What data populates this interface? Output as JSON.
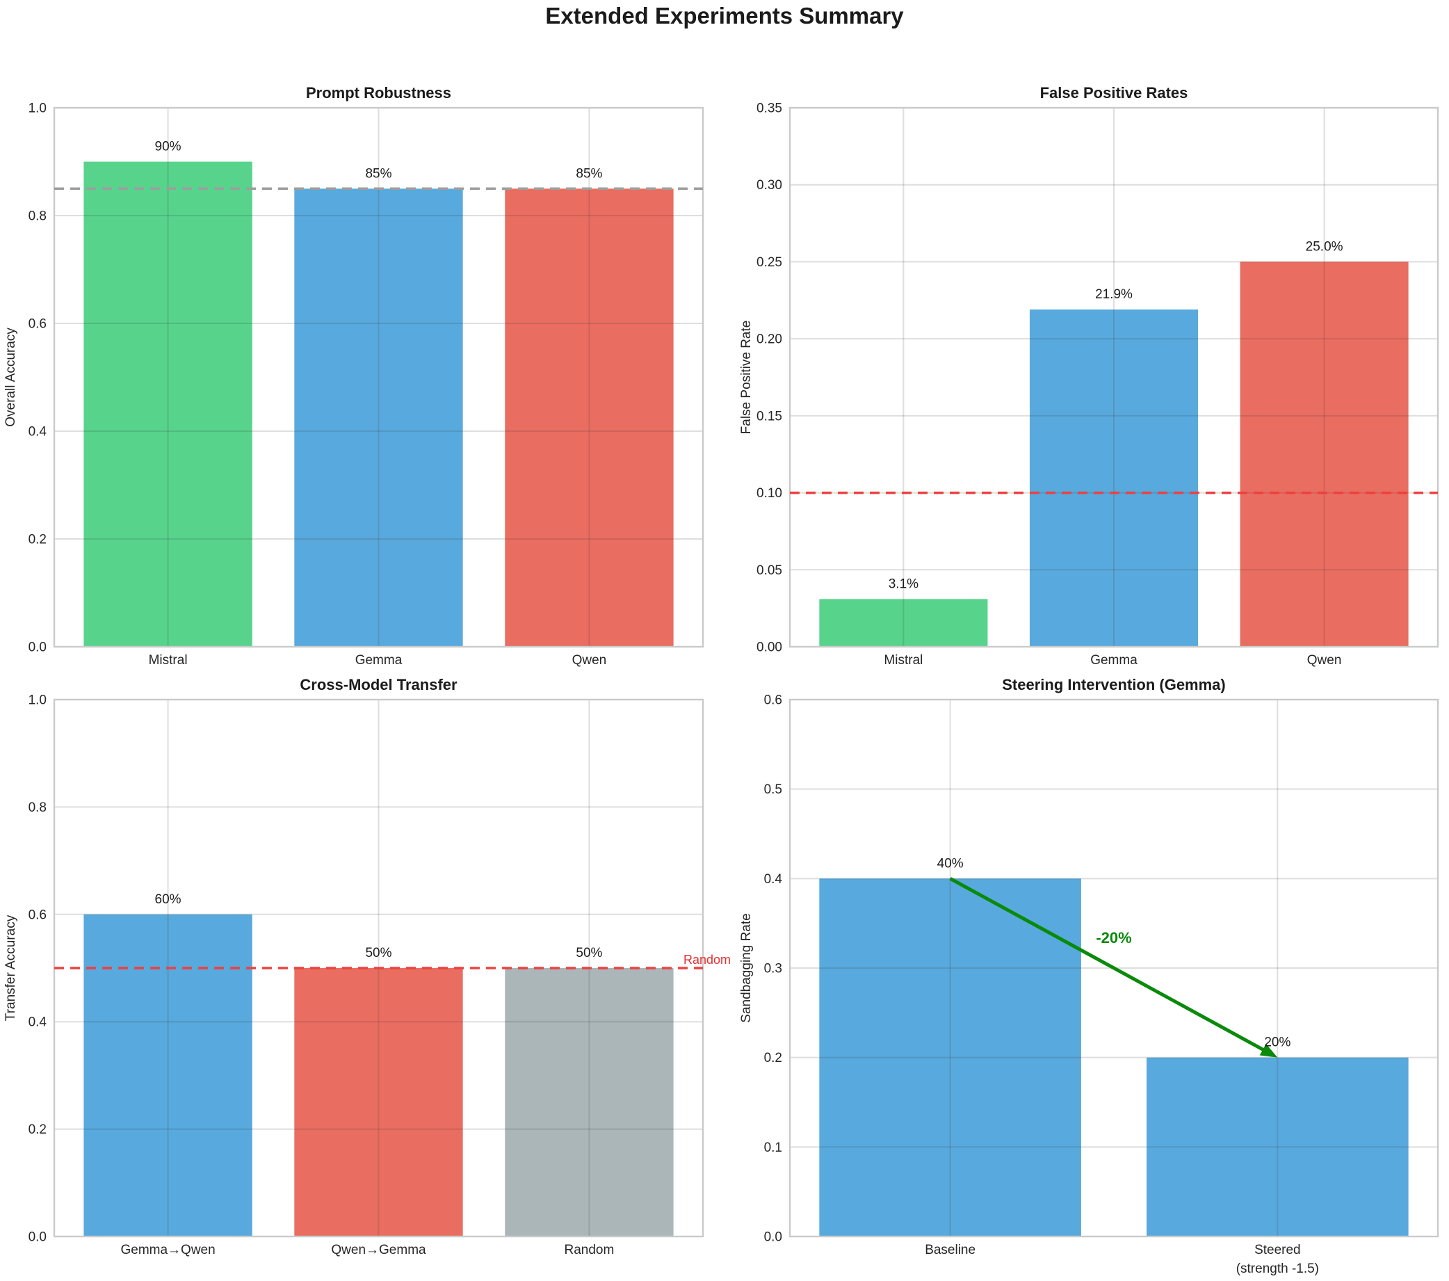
{
  "figure_title": "Extended Experiments Summary",
  "text_color": "#262626",
  "grid_color": "rgba(60,60,60,0.17)",
  "spine_color": "#c9cacb",
  "chart_data": [
    {
      "type": "bar",
      "title": "Prompt Robustness",
      "ylabel": "Overall Accuracy",
      "ylim": [
        0,
        1.0
      ],
      "yticks": [
        {
          "label": "0.0",
          "value": 0.0
        },
        {
          "label": "0.2",
          "value": 0.2
        },
        {
          "label": "0.4",
          "value": 0.4
        },
        {
          "label": "0.6",
          "value": 0.6
        },
        {
          "label": "0.8",
          "value": 0.8
        },
        {
          "label": "1.0",
          "value": 1.0
        }
      ],
      "categories": [
        "Mistral",
        "Gemma",
        "Qwen"
      ],
      "values": [
        0.9,
        0.85,
        0.85
      ],
      "bar_labels": [
        "90%",
        "85%",
        "85%"
      ],
      "bar_colors": [
        "#57d38c",
        "#58a9dd",
        "#e96d60"
      ],
      "ref_lines": [
        {
          "value": 0.85,
          "color": "#9e9e9e",
          "label": null,
          "label_color": null
        }
      ],
      "annotations": []
    },
    {
      "type": "bar",
      "title": "False Positive Rates",
      "ylabel": "False Positive Rate",
      "ylim": [
        0,
        0.35
      ],
      "yticks": [
        {
          "label": "0.00",
          "value": 0.0
        },
        {
          "label": "0.05",
          "value": 0.05
        },
        {
          "label": "0.10",
          "value": 0.1
        },
        {
          "label": "0.15",
          "value": 0.15
        },
        {
          "label": "0.20",
          "value": 0.2
        },
        {
          "label": "0.25",
          "value": 0.25
        },
        {
          "label": "0.30",
          "value": 0.3
        },
        {
          "label": "0.35",
          "value": 0.35
        }
      ],
      "categories": [
        "Mistral",
        "Gemma",
        "Qwen"
      ],
      "values": [
        0.031,
        0.219,
        0.25
      ],
      "bar_labels": [
        "3.1%",
        "21.9%",
        "25.0%"
      ],
      "bar_colors": [
        "#57d38c",
        "#58a9dd",
        "#e96d60"
      ],
      "ref_lines": [
        {
          "value": 0.1,
          "color": "#ee4040",
          "label": null,
          "label_color": null
        }
      ],
      "annotations": []
    },
    {
      "type": "bar",
      "title": "Cross-Model Transfer",
      "ylabel": "Transfer Accuracy",
      "ylim": [
        0,
        1.0
      ],
      "yticks": [
        {
          "label": "0.0",
          "value": 0.0
        },
        {
          "label": "0.2",
          "value": 0.2
        },
        {
          "label": "0.4",
          "value": 0.4
        },
        {
          "label": "0.6",
          "value": 0.6
        },
        {
          "label": "0.8",
          "value": 0.8
        },
        {
          "label": "1.0",
          "value": 1.0
        }
      ],
      "categories": [
        "Gemma→Qwen",
        "Qwen→Gemma",
        "Random"
      ],
      "values": [
        0.6,
        0.5,
        0.5
      ],
      "bar_labels": [
        "60%",
        "50%",
        "50%"
      ],
      "bar_colors": [
        "#58a9dd",
        "#e96d60",
        "#aab6b8"
      ],
      "ref_lines": [
        {
          "value": 0.5,
          "color": "#ee4040",
          "label": "Random",
          "label_color": "#e82e2e"
        }
      ],
      "annotations": []
    },
    {
      "type": "bar",
      "title": "Steering Intervention (Gemma)",
      "ylabel": "Sandbagging Rate",
      "ylim": [
        0,
        0.6
      ],
      "yticks": [
        {
          "label": "0.0",
          "value": 0.0
        },
        {
          "label": "0.1",
          "value": 0.1
        },
        {
          "label": "0.2",
          "value": 0.2
        },
        {
          "label": "0.3",
          "value": 0.3
        },
        {
          "label": "0.4",
          "value": 0.4
        },
        {
          "label": "0.5",
          "value": 0.5
        },
        {
          "label": "0.6",
          "value": 0.6
        }
      ],
      "categories": [
        "Baseline",
        "Steered\n(strength -1.5)"
      ],
      "values": [
        0.4,
        0.2
      ],
      "bar_labels": [
        "40%",
        "20%"
      ],
      "bar_colors": [
        "#58a9dd",
        "#58a9dd"
      ],
      "ref_lines": [],
      "annotations": [
        {
          "kind": "arrow",
          "from": [
            0,
            0.4
          ],
          "to": [
            1,
            0.2
          ],
          "color": "#0a8a0a",
          "width": 5
        },
        {
          "kind": "text",
          "at": [
            0.5,
            0.328
          ],
          "text": "-20%",
          "color": "#0a8a0a",
          "size": 22,
          "bold": true
        }
      ]
    }
  ]
}
